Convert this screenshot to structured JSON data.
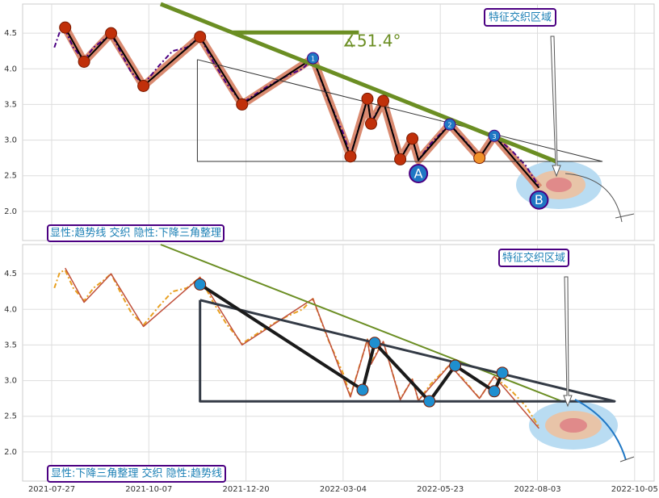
{
  "chart_data": [
    {
      "type": "line",
      "ylim": [
        1.59,
        4.91
      ],
      "yticks": [
        {
          "value": 2.0,
          "label": "2.0"
        },
        {
          "value": 2.5,
          "label": "2.5"
        },
        {
          "value": 3.0,
          "label": "3.0"
        },
        {
          "value": 3.5,
          "label": "3.5"
        },
        {
          "value": 4.0,
          "label": "4.0"
        },
        {
          "value": 4.5,
          "label": "4.5"
        }
      ],
      "grid": true,
      "annotations": {
        "zone": "特征交织区域",
        "summary": "显性:趋势线 交织 隐性:下降三角整理",
        "angle": "∡51.4°"
      },
      "series": [
        {
          "color": "#d98a70",
          "width": 10,
          "x": [
            "2021-08-06",
            "2021-08-20",
            "2021-09-09",
            "2021-10-03",
            "2021-11-15",
            "2021-12-17",
            "2022-02-09",
            "2022-03-10",
            "2022-03-24",
            "2022-03-27",
            "2022-04-06",
            "2022-04-20",
            "2022-04-30",
            "2022-05-05",
            "2022-05-30",
            "2022-06-21",
            "2022-07-02",
            "2022-08-04"
          ],
          "values": [
            4.58,
            4.1,
            4.5,
            3.76,
            4.45,
            3.5,
            4.15,
            2.77,
            3.58,
            3.23,
            3.55,
            2.73,
            3.02,
            2.72,
            3.22,
            2.75,
            3.06,
            2.33
          ]
        },
        {
          "color": "#4b0082",
          "width": 2,
          "dash": "6 3 2 3",
          "x": [
            "2021-07-29",
            "2021-08-02",
            "2021-08-06",
            "2021-08-12",
            "2021-08-20",
            "2021-08-27",
            "2021-09-03",
            "2021-09-09",
            "2021-09-17",
            "2021-09-24",
            "2021-10-03",
            "2021-10-15",
            "2021-10-25",
            "2021-11-05",
            "2021-11-15",
            "2021-11-25",
            "2021-12-05",
            "2021-12-17",
            "2022-01-05",
            "2022-01-20",
            "2022-02-01",
            "2022-02-09",
            "2022-02-20",
            "2022-03-04",
            "2022-03-10",
            "2022-03-24",
            "2022-03-27",
            "2022-04-06",
            "2022-04-20",
            "2022-04-30",
            "2022-05-05",
            "2022-05-15",
            "2022-05-30",
            "2022-06-10",
            "2022-06-21",
            "2022-07-02",
            "2022-07-15",
            "2022-07-25",
            "2022-08-04"
          ],
          "values": [
            4.3,
            4.52,
            4.55,
            4.3,
            4.12,
            4.3,
            4.4,
            4.5,
            4.2,
            3.95,
            3.78,
            4.05,
            4.25,
            4.3,
            4.45,
            4.1,
            3.8,
            3.52,
            3.75,
            3.9,
            4.0,
            4.15,
            3.6,
            3.1,
            2.78,
            3.58,
            3.25,
            3.55,
            2.74,
            3.02,
            2.72,
            2.95,
            3.22,
            3.0,
            2.75,
            3.06,
            2.85,
            2.65,
            2.35
          ]
        },
        {
          "color": "#000000",
          "width": 2,
          "x": [
            "2021-08-06",
            "2021-08-20",
            "2021-09-09",
            "2021-10-03",
            "2021-11-15",
            "2021-12-17",
            "2022-02-09",
            "2022-03-10",
            "2022-03-24",
            "2022-03-27",
            "2022-04-06",
            "2022-04-20",
            "2022-04-30",
            "2022-05-05",
            "2022-05-30",
            "2022-06-21",
            "2022-07-02",
            "2022-08-04"
          ],
          "values": [
            4.58,
            4.1,
            4.5,
            3.76,
            4.45,
            3.5,
            4.15,
            2.77,
            3.58,
            3.23,
            3.55,
            2.73,
            3.02,
            2.72,
            3.22,
            2.75,
            3.06,
            2.33
          ]
        },
        {
          "color": "#333333",
          "width": 1,
          "x": [
            "2021-11-13",
            "2022-09-14",
            "2021-11-13",
            "2021-11-13"
          ],
          "values": [
            4.13,
            2.7,
            2.7,
            4.13
          ]
        },
        {
          "color": "#6b8e23",
          "width": 5,
          "x": [
            "2021-10-16",
            "2022-08-15"
          ],
          "values": [
            4.91,
            2.7
          ]
        },
        {
          "color": "#6b8e23",
          "width": 5,
          "x": [
            "2021-12-10",
            "2022-03-17"
          ],
          "values": [
            4.51,
            4.51
          ]
        }
      ],
      "markers": [
        {
          "x": "2021-08-06",
          "value": 4.58,
          "color": "#c0300a"
        },
        {
          "x": "2021-08-20",
          "value": 4.1,
          "color": "#c0300a"
        },
        {
          "x": "2021-09-09",
          "value": 4.5,
          "color": "#c0300a"
        },
        {
          "x": "2021-10-03",
          "value": 3.76,
          "color": "#c0300a"
        },
        {
          "x": "2021-11-15",
          "value": 4.45,
          "color": "#c0300a"
        },
        {
          "x": "2021-12-17",
          "value": 3.5,
          "color": "#c0300a"
        },
        {
          "x": "2022-02-09",
          "value": 4.15,
          "color": "#1f77c4",
          "label": "1"
        },
        {
          "x": "2022-03-10",
          "value": 2.77,
          "color": "#c0300a"
        },
        {
          "x": "2022-03-24",
          "value": 3.58,
          "color": "#c0300a"
        },
        {
          "x": "2022-03-27",
          "value": 3.23,
          "color": "#c0300a"
        },
        {
          "x": "2022-04-06",
          "value": 3.55,
          "color": "#c0300a"
        },
        {
          "x": "2022-04-20",
          "value": 2.73,
          "color": "#c0300a"
        },
        {
          "x": "2022-04-30",
          "value": 3.02,
          "color": "#c0300a"
        },
        {
          "x": "2022-05-05",
          "value": 2.53,
          "color": "#1f77c4",
          "label": "A",
          "big": true
        },
        {
          "x": "2022-05-30",
          "value": 3.22,
          "color": "#1f77c4",
          "label": "2"
        },
        {
          "x": "2022-06-21",
          "value": 2.75,
          "color": "#f0922a"
        },
        {
          "x": "2022-07-02",
          "value": 3.06,
          "color": "#1f77c4",
          "label": "3"
        },
        {
          "x": "2022-08-04",
          "value": 2.16,
          "color": "#1f77c4",
          "label": "B",
          "big": true
        }
      ]
    },
    {
      "type": "line",
      "ylim": [
        1.59,
        4.91
      ],
      "yticks": [
        {
          "value": 2.0,
          "label": "2.0"
        },
        {
          "value": 2.5,
          "label": "2.5"
        },
        {
          "value": 3.0,
          "label": "3.0"
        },
        {
          "value": 3.5,
          "label": "3.5"
        },
        {
          "value": 4.0,
          "label": "4.0"
        },
        {
          "value": 4.5,
          "label": "4.5"
        }
      ],
      "xticks": [
        "2021-07-27",
        "2021-10-07",
        "2021-12-20",
        "2022-03-04",
        "2022-05-23",
        "2022-08-03",
        "2022-10-05"
      ],
      "grid": true,
      "annotations": {
        "zone": "特征交织区域",
        "summary": "显性:下降三角整理 交织 隐性:趋势线"
      },
      "series": [
        {
          "color": "#e8a020",
          "width": 2,
          "dash": "6 3 2 3",
          "x": [
            "2021-07-29",
            "2021-08-02",
            "2021-08-06",
            "2021-08-12",
            "2021-08-20",
            "2021-08-27",
            "2021-09-03",
            "2021-09-09",
            "2021-09-17",
            "2021-09-24",
            "2021-10-03",
            "2021-10-15",
            "2021-10-25",
            "2021-11-05",
            "2021-11-15",
            "2021-11-25",
            "2021-12-05",
            "2021-12-17",
            "2022-01-05",
            "2022-01-20",
            "2022-02-01",
            "2022-02-09",
            "2022-02-20",
            "2022-03-04",
            "2022-03-10",
            "2022-03-24",
            "2022-03-27",
            "2022-04-06",
            "2022-04-20",
            "2022-04-30",
            "2022-05-05",
            "2022-05-15",
            "2022-05-30",
            "2022-06-10",
            "2022-06-21",
            "2022-07-02",
            "2022-07-15",
            "2022-07-25",
            "2022-08-04"
          ],
          "values": [
            4.3,
            4.52,
            4.55,
            4.3,
            4.12,
            4.3,
            4.4,
            4.5,
            4.2,
            3.95,
            3.78,
            4.05,
            4.25,
            4.3,
            4.45,
            4.1,
            3.8,
            3.52,
            3.75,
            3.9,
            4.0,
            4.15,
            3.6,
            3.1,
            2.78,
            3.58,
            3.25,
            3.55,
            2.74,
            3.02,
            2.72,
            2.95,
            3.22,
            3.0,
            2.75,
            3.06,
            2.85,
            2.65,
            2.35
          ]
        },
        {
          "color": "#c0503a",
          "width": 1.5,
          "x": [
            "2021-08-06",
            "2021-08-20",
            "2021-09-09",
            "2021-10-03",
            "2021-11-15",
            "2021-12-17",
            "2022-02-09",
            "2022-03-10",
            "2022-03-24",
            "2022-03-27",
            "2022-04-06",
            "2022-04-20",
            "2022-04-30",
            "2022-05-05",
            "2022-05-30",
            "2022-06-21",
            "2022-07-02",
            "2022-08-04"
          ],
          "values": [
            4.58,
            4.1,
            4.5,
            3.76,
            4.45,
            3.5,
            4.15,
            2.77,
            3.58,
            3.23,
            3.55,
            2.73,
            3.02,
            2.72,
            3.22,
            2.75,
            3.06,
            2.33
          ]
        },
        {
          "color": "#6b8e23",
          "width": 2,
          "x": [
            "2021-10-16",
            "2022-08-20"
          ],
          "values": [
            4.91,
            2.7
          ]
        },
        {
          "color": "#333a45",
          "width": 3,
          "x": [
            "2021-11-15",
            "2022-09-22",
            "2021-11-15",
            "2021-11-15"
          ],
          "values": [
            4.13,
            2.71,
            2.71,
            4.13
          ]
        },
        {
          "color": "#1a1a1a",
          "width": 4,
          "x": [
            "2021-11-15",
            "2022-03-20",
            "2022-03-30",
            "2022-05-14",
            "2022-06-03",
            "2022-07-02",
            "2022-07-08"
          ],
          "values": [
            4.35,
            2.87,
            3.53,
            2.71,
            3.21,
            2.85,
            3.11
          ]
        }
      ],
      "markers": [
        {
          "x": "2021-11-15",
          "value": 4.35,
          "color": "#1f8fd0"
        },
        {
          "x": "2022-03-20",
          "value": 2.87,
          "color": "#1f8fd0"
        },
        {
          "x": "2022-03-30",
          "value": 3.53,
          "color": "#1f8fd0"
        },
        {
          "x": "2022-05-14",
          "value": 2.71,
          "color": "#1f8fd0"
        },
        {
          "x": "2022-06-03",
          "value": 3.21,
          "color": "#1f8fd0"
        },
        {
          "x": "2022-07-02",
          "value": 2.85,
          "color": "#1f8fd0"
        },
        {
          "x": "2022-07-08",
          "value": 3.11,
          "color": "#1f8fd0"
        }
      ]
    }
  ]
}
